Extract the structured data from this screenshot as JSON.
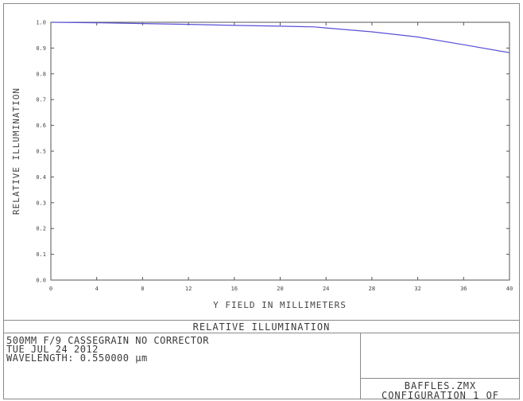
{
  "chart_data": {
    "type": "line",
    "title": "RELATIVE ILLUMINATION",
    "xlabel": "Y FIELD IN MILLIMETERS",
    "ylabel": "RELATIVE ILLUMINATION",
    "xlim": [
      0,
      40
    ],
    "ylim": [
      0,
      1
    ],
    "x_ticks": [
      "0",
      "4",
      "8",
      "12",
      "16",
      "20",
      "24",
      "28",
      "32",
      "36",
      "40"
    ],
    "y_ticks": [
      "0.0",
      "0.1",
      "0.2",
      "0.3",
      "0.4",
      "0.5",
      "0.6",
      "0.7",
      "0.8",
      "0.9",
      "1.0"
    ],
    "grid": false,
    "series": [
      {
        "color": "#5a4fd6",
        "x": [
          0,
          4,
          8,
          12,
          16,
          20,
          23,
          24,
          28,
          32,
          36,
          40
        ],
        "y": [
          1.0,
          0.998,
          0.995,
          0.992,
          0.988,
          0.985,
          0.982,
          0.978,
          0.963,
          0.943,
          0.913,
          0.882
        ]
      }
    ]
  },
  "info": {
    "lines": [
      "500MM F/9 CASSEGRAIN NO CORRECTOR",
      "TUE JUL 24 2012",
      "WAVELENGTH: 0.550000 µm"
    ]
  },
  "file": {
    "name": "BAFFLES.ZMX",
    "configuration": "CONFIGURATION 1 OF"
  }
}
